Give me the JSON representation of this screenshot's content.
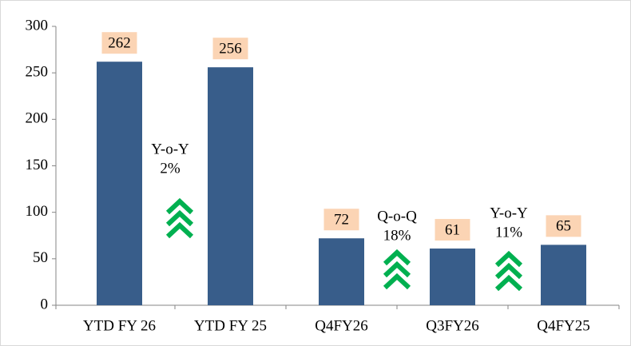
{
  "chart_data": {
    "type": "bar",
    "categories": [
      "YTD FY 26",
      "YTD FY 25",
      "Q4FY26",
      "Q3FY26",
      "Q4FY25"
    ],
    "values": [
      262,
      256,
      72,
      61,
      65
    ],
    "color": "#385d8a",
    "label_color": "#fbd4b4",
    "ylim": [
      0,
      300
    ],
    "yticks": [
      0,
      50,
      100,
      150,
      200,
      250,
      300
    ],
    "grid": false,
    "annotations": [
      {
        "label": "Y-o-Y",
        "value": "2%"
      },
      {
        "label": "Q-o-Q",
        "value": "18%"
      },
      {
        "label": "Y-o-Y",
        "value": "11%"
      }
    ],
    "arrow_color": "#00b050"
  }
}
